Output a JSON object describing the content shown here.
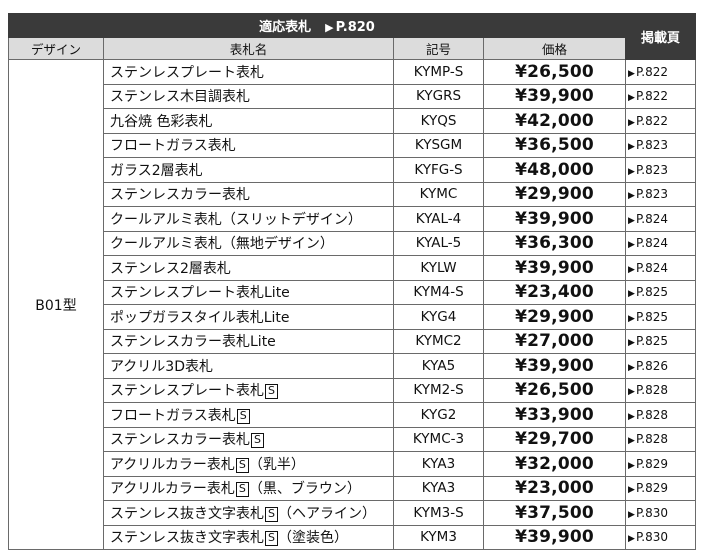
{
  "header": {
    "band_title": "適応表札",
    "band_ref": "P.820",
    "page_col": "掲載頁",
    "col_design": "デザイン",
    "col_name": "表札名",
    "col_code": "記号",
    "col_price": "価格"
  },
  "design_label": "B01型",
  "rows": [
    {
      "name": "ステンレスプレート表札",
      "s_mark": "",
      "suffix": "",
      "code": "KYMP-S",
      "price": "¥26,500",
      "page": "P.822"
    },
    {
      "name": "ステンレス木目調表札",
      "s_mark": "",
      "suffix": "",
      "code": "KYGRS",
      "price": "¥39,900",
      "page": "P.822"
    },
    {
      "name": "九谷焼 色彩表札",
      "s_mark": "",
      "suffix": "",
      "code": "KYQS",
      "price": "¥42,000",
      "page": "P.822"
    },
    {
      "name": "フロートガラス表札",
      "s_mark": "",
      "suffix": "",
      "code": "KYSGM",
      "price": "¥36,500",
      "page": "P.823"
    },
    {
      "name": "ガラス2層表札",
      "s_mark": "",
      "suffix": "",
      "code": "KYFG-S",
      "price": "¥48,000",
      "page": "P.823"
    },
    {
      "name": "ステンレスカラー表札",
      "s_mark": "",
      "suffix": "",
      "code": "KYMC",
      "price": "¥29,900",
      "page": "P.823"
    },
    {
      "name": "クールアルミ表札（スリットデザイン）",
      "s_mark": "",
      "suffix": "",
      "code": "KYAL-4",
      "price": "¥39,900",
      "page": "P.824"
    },
    {
      "name": "クールアルミ表札（無地デザイン）",
      "s_mark": "",
      "suffix": "",
      "code": "KYAL-5",
      "price": "¥36,300",
      "page": "P.824"
    },
    {
      "name": "ステンレス2層表札",
      "s_mark": "",
      "suffix": "",
      "code": "KYLW",
      "price": "¥39,900",
      "page": "P.824"
    },
    {
      "name": "ステンレスプレート表札Lite",
      "s_mark": "",
      "suffix": "",
      "code": "KYM4-S",
      "price": "¥23,400",
      "page": "P.825"
    },
    {
      "name": "ポップガラスタイル表札Lite",
      "s_mark": "",
      "suffix": "",
      "code": "KYG4",
      "price": "¥29,900",
      "page": "P.825"
    },
    {
      "name": "ステンレスカラー表札Lite",
      "s_mark": "",
      "suffix": "",
      "code": "KYMC2",
      "price": "¥27,000",
      "page": "P.825"
    },
    {
      "name": "アクリル3D表札",
      "s_mark": "",
      "suffix": "",
      "code": "KYA5",
      "price": "¥39,900",
      "page": "P.826"
    },
    {
      "name": "ステンレスプレート表札",
      "s_mark": "S",
      "suffix": "",
      "code": "KYM2-S",
      "price": "¥26,500",
      "page": "P.828"
    },
    {
      "name": "フロートガラス表札",
      "s_mark": "S",
      "suffix": "",
      "code": "KYG2",
      "price": "¥33,900",
      "page": "P.828"
    },
    {
      "name": "ステンレスカラー表札",
      "s_mark": "S",
      "suffix": "",
      "code": "KYMC-3",
      "price": "¥29,700",
      "page": "P.828"
    },
    {
      "name": "アクリルカラー表札",
      "s_mark": "S",
      "suffix": "（乳半）",
      "code": "KYA3",
      "price": "¥32,000",
      "page": "P.829"
    },
    {
      "name": "アクリルカラー表札",
      "s_mark": "S",
      "suffix": "（黒、ブラウン）",
      "code": "KYA3",
      "price": "¥23,000",
      "page": "P.829"
    },
    {
      "name": "ステンレス抜き文字表札",
      "s_mark": "S",
      "suffix": "（ヘアライン）",
      "code": "KYM3-S",
      "price": "¥37,500",
      "page": "P.830"
    },
    {
      "name": "ステンレス抜き文字表札",
      "s_mark": "S",
      "suffix": "（塗装色）",
      "code": "KYM3",
      "price": "¥39,900",
      "page": "P.830"
    }
  ]
}
